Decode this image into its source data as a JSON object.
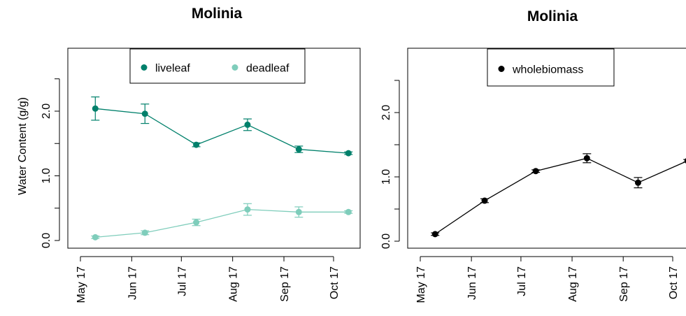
{
  "chart_data": [
    {
      "type": "line",
      "title": "Molinia",
      "xlabel": "",
      "ylabel": "Water Content (g/g)",
      "ylim": [
        -0.1,
        2.75
      ],
      "x_ticks": [
        "May 17",
        "Jun 17",
        "Jul 17",
        "Aug 17",
        "Sep 17",
        "Oct 17"
      ],
      "y_ticks": [
        "0.0",
        "1.0",
        "2.0"
      ],
      "y_tick_values": [
        0,
        0.5,
        1.0,
        1.5,
        2.0,
        2.5
      ],
      "grid": false,
      "legend": "top-center",
      "x": [
        "2017-05-10",
        "2017-06-09",
        "2017-07-10",
        "2017-08-10",
        "2017-09-10",
        "2017-10-10"
      ],
      "series": [
        {
          "name": "liveleaf",
          "color": "#00806b",
          "values": [
            2.04,
            1.96,
            1.48,
            1.79,
            1.41,
            1.35
          ],
          "err": [
            0.18,
            0.15,
            0.03,
            0.09,
            0.05,
            0.02
          ]
        },
        {
          "name": "deadleaf",
          "color": "#7fcdbb",
          "values": [
            0.05,
            0.12,
            0.28,
            0.48,
            0.44,
            0.44
          ],
          "err": [
            0.02,
            0.03,
            0.05,
            0.09,
            0.08,
            0.02
          ]
        }
      ]
    },
    {
      "type": "line",
      "title": "Molinia",
      "xlabel": "",
      "ylabel": "",
      "ylim": [
        -0.1,
        2.75
      ],
      "x_ticks": [
        "May 17",
        "Jun 17",
        "Jul 17",
        "Aug 17",
        "Sep 17",
        "Oct 17"
      ],
      "y_ticks": [
        "0.0",
        "1.0",
        "2.0"
      ],
      "y_tick_values": [
        0,
        0.5,
        1.0,
        1.5,
        2.0,
        2.5
      ],
      "grid": false,
      "legend": "top-center",
      "x": [
        "2017-05-10",
        "2017-06-09",
        "2017-07-10",
        "2017-08-10",
        "2017-09-10",
        "2017-10-10"
      ],
      "series": [
        {
          "name": "wholebiomass",
          "color": "#000000",
          "values": [
            0.11,
            0.63,
            1.09,
            1.29,
            0.91,
            1.25
          ],
          "err": [
            0.02,
            0.03,
            0.02,
            0.07,
            0.08,
            0.02
          ]
        }
      ]
    }
  ]
}
